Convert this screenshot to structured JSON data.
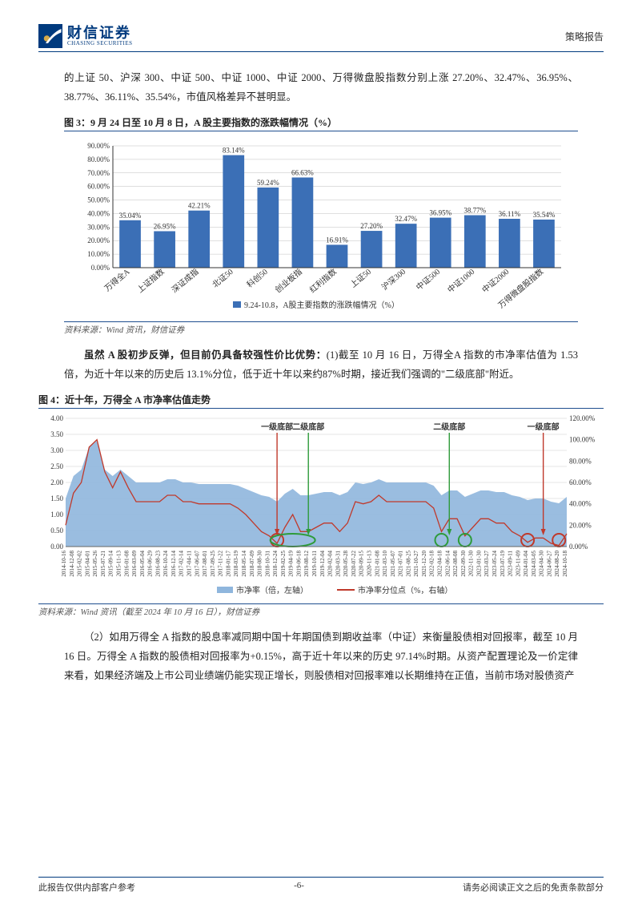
{
  "header": {
    "logo_cn": "财信证券",
    "logo_en": "CHASING SECURITIES",
    "doc_type": "策略报告"
  },
  "para1": "的上证 50、沪深 300、中证 500、中证 1000、中证 2000、万得微盘股指数分别上涨 27.20%、32.47%、36.95%、38.77%、36.11%、35.54%，市值风格差异不甚明显。",
  "fig3": {
    "title": "图 3：9 月 24 日至 10 月 8 日，A 股主要指数的涨跌幅情况（%）",
    "type": "bar",
    "categories": [
      "万得全A",
      "上证指数",
      "深证成指",
      "北证50",
      "科创50",
      "创业板指",
      "红利指数",
      "上证50",
      "沪深300",
      "中证500",
      "中证1000",
      "中证2000",
      "万得微盘股指数"
    ],
    "values": [
      35.04,
      26.95,
      42.21,
      83.14,
      59.24,
      66.63,
      16.91,
      27.2,
      32.47,
      36.95,
      38.77,
      36.11,
      35.54
    ],
    "labels": [
      "35.04%",
      "26.95%",
      "42.21%",
      "83.14%",
      "59.24%",
      "66.63%",
      "16.91%",
      "27.20%",
      "32.47%",
      "36.95%",
      "38.77%",
      "36.11%",
      "35.54%"
    ],
    "bar_color": "#3b6fb6",
    "grid_color": "#bfbfbf",
    "border_color": "#333333",
    "ylim": [
      0,
      90
    ],
    "ytick_step": 10,
    "yticks": [
      "0.00%",
      "10.00%",
      "20.00%",
      "30.00%",
      "40.00%",
      "50.00%",
      "60.00%",
      "70.00%",
      "80.00%",
      "90.00%"
    ],
    "legend": "9.24-10.8，A股主要指数的涨跌幅情况（%）",
    "background": "#ffffff",
    "src": "资料来源：Wind 资讯，财信证券"
  },
  "para2_lead": "虽然 A 股初步反弹，但目前仍具备较强性价比优势：",
  "para2_rest": "(1)截至 10 月 16 日，万得全A 指数的市净率估值为 1.53 倍，为近十年以来的历史后 13.1%分位，低于近十年以来约87%时期，接近我们强调的\"二级底部\"附近。",
  "fig4": {
    "title": "图 4：近十年，万得全 A 市净率估值走势",
    "type": "area_line_dual_axis",
    "series_area": {
      "name": "市净率（倍，左轴）",
      "color": "#8fb6dd",
      "fill_opacity": 0.9
    },
    "series_line": {
      "name": "市净率分位点（%，右轴）",
      "color": "#c0392b",
      "line_width": 1.3
    },
    "y_left": {
      "lim": [
        0,
        4
      ],
      "tick": 0.5,
      "ticks": [
        "0.00",
        "0.50",
        "1.00",
        "1.50",
        "2.00",
        "2.50",
        "3.00",
        "3.50",
        "4.00"
      ]
    },
    "y_right": {
      "lim": [
        0,
        120
      ],
      "tick": 20,
      "ticks": [
        "0.00%",
        "20.00%",
        "40.00%",
        "60.00%",
        "80.00%",
        "100.00%",
        "120.00%"
      ]
    },
    "x_labels": [
      "2014-10-16",
      "2014-12-08",
      "2015-02-02",
      "2015-04-01",
      "2015-05-26",
      "2015-07-21",
      "2015-09-14",
      "2015-11-13",
      "2016-01-08",
      "2016-03-09",
      "2016-05-04",
      "2016-06-29",
      "2016-08-23",
      "2016-10-24",
      "2016-12-14",
      "2017-02-14",
      "2017-04-11",
      "2017-06-07",
      "2017-08-01",
      "2017-09-25",
      "2017-11-22",
      "2018-01-17",
      "2018-03-19",
      "2018-05-14",
      "2018-07-09",
      "2018-08-30",
      "2018-10-31",
      "2018-12-24",
      "2019-02-25",
      "2019-04-19",
      "2019-06-18",
      "2019-08-12",
      "2019-10-11",
      "2019-12-04",
      "2020-02-04",
      "2020-03-31",
      "2020-05-28",
      "2020-07-22",
      "2020-09-15",
      "2020-11-13",
      "2021-01-08",
      "2021-03-10",
      "2021-05-07",
      "2021-07-01",
      "2021-08-25",
      "2021-10-27",
      "2021-12-20",
      "2022-02-18",
      "2022-04-18",
      "2022-06-14",
      "2022-08-08",
      "2022-09-30",
      "2022-11-30",
      "2023-01-30",
      "2023-03-27",
      "2023-05-24",
      "2023-07-19",
      "2023-09-11",
      "2023-11-09",
      "2024-01-04",
      "2024-03-05",
      "2024-04-30",
      "2024-06-27",
      "2024-08-20",
      "2024-10-18"
    ],
    "area_path": [
      1.5,
      2.2,
      2.4,
      3.1,
      3.3,
      2.4,
      2.2,
      2.4,
      2.2,
      2.0,
      2.0,
      2.0,
      2.0,
      2.1,
      2.1,
      2.0,
      2.0,
      1.95,
      1.95,
      1.95,
      1.95,
      1.95,
      1.9,
      1.8,
      1.7,
      1.6,
      1.55,
      1.4,
      1.65,
      1.8,
      1.6,
      1.6,
      1.65,
      1.7,
      1.7,
      1.6,
      1.7,
      2.0,
      1.95,
      2.0,
      2.1,
      2.0,
      2.0,
      2.0,
      2.0,
      2.0,
      2.0,
      1.9,
      1.6,
      1.75,
      1.75,
      1.55,
      1.65,
      1.75,
      1.75,
      1.7,
      1.7,
      1.6,
      1.55,
      1.45,
      1.5,
      1.5,
      1.4,
      1.35,
      1.55
    ],
    "line_path": [
      20,
      50,
      60,
      93,
      100,
      70,
      55,
      70,
      55,
      42,
      42,
      42,
      42,
      48,
      48,
      42,
      42,
      40,
      40,
      40,
      40,
      40,
      36,
      30,
      22,
      14,
      10,
      3,
      18,
      30,
      14,
      14,
      18,
      22,
      22,
      14,
      22,
      42,
      40,
      42,
      48,
      42,
      42,
      42,
      42,
      42,
      42,
      36,
      14,
      26,
      26,
      10,
      18,
      26,
      26,
      22,
      22,
      14,
      10,
      4,
      8,
      8,
      3,
      1,
      12
    ],
    "annotations": [
      {
        "label": "一级底部",
        "x_idx": 27,
        "color": "#c0392b"
      },
      {
        "label": "二级底部",
        "x_idx": 31,
        "color": "#2e9b3a"
      },
      {
        "label": "二级底部",
        "x_idx": 49,
        "color": "#2e9b3a"
      },
      {
        "label": "一级底部",
        "x_idx": 61,
        "color": "#c0392b"
      }
    ],
    "circles": [
      {
        "x_idx": 27,
        "color": "#c0392b"
      },
      {
        "x_idx": 29,
        "color": "#2e9b3a",
        "wide": true
      },
      {
        "x_idx": 48,
        "color": "#2e9b3a"
      },
      {
        "x_idx": 51,
        "color": "#2e9b3a"
      },
      {
        "x_idx": 59,
        "color": "#c0392b"
      },
      {
        "x_idx": 63,
        "color": "#c0392b"
      }
    ],
    "grid_color": "#cccccc",
    "src": "资料来源：Wind 资讯（截至 2024 年 10 月 16 日），财信证券"
  },
  "para3": "（2）如用万得全 A 指数的股息率减同期中国十年期国债到期收益率（中证）来衡量股债相对回报率，截至 10 月 16 日。万得全 A 指数的股债相对回报率为+0.15%，高于近十年以来的历史 97.14%时期。从资产配置理论及一价定律来看，如果经济端及上市公司业绩端仍能实现正增长，则股债相对回报率难以长期维持在正值，当前市场对股债资产",
  "footer": {
    "left": "此报告仅供内部客户参考",
    "center": "-6-",
    "right": "请务必阅读正文之后的免责条款部分"
  }
}
